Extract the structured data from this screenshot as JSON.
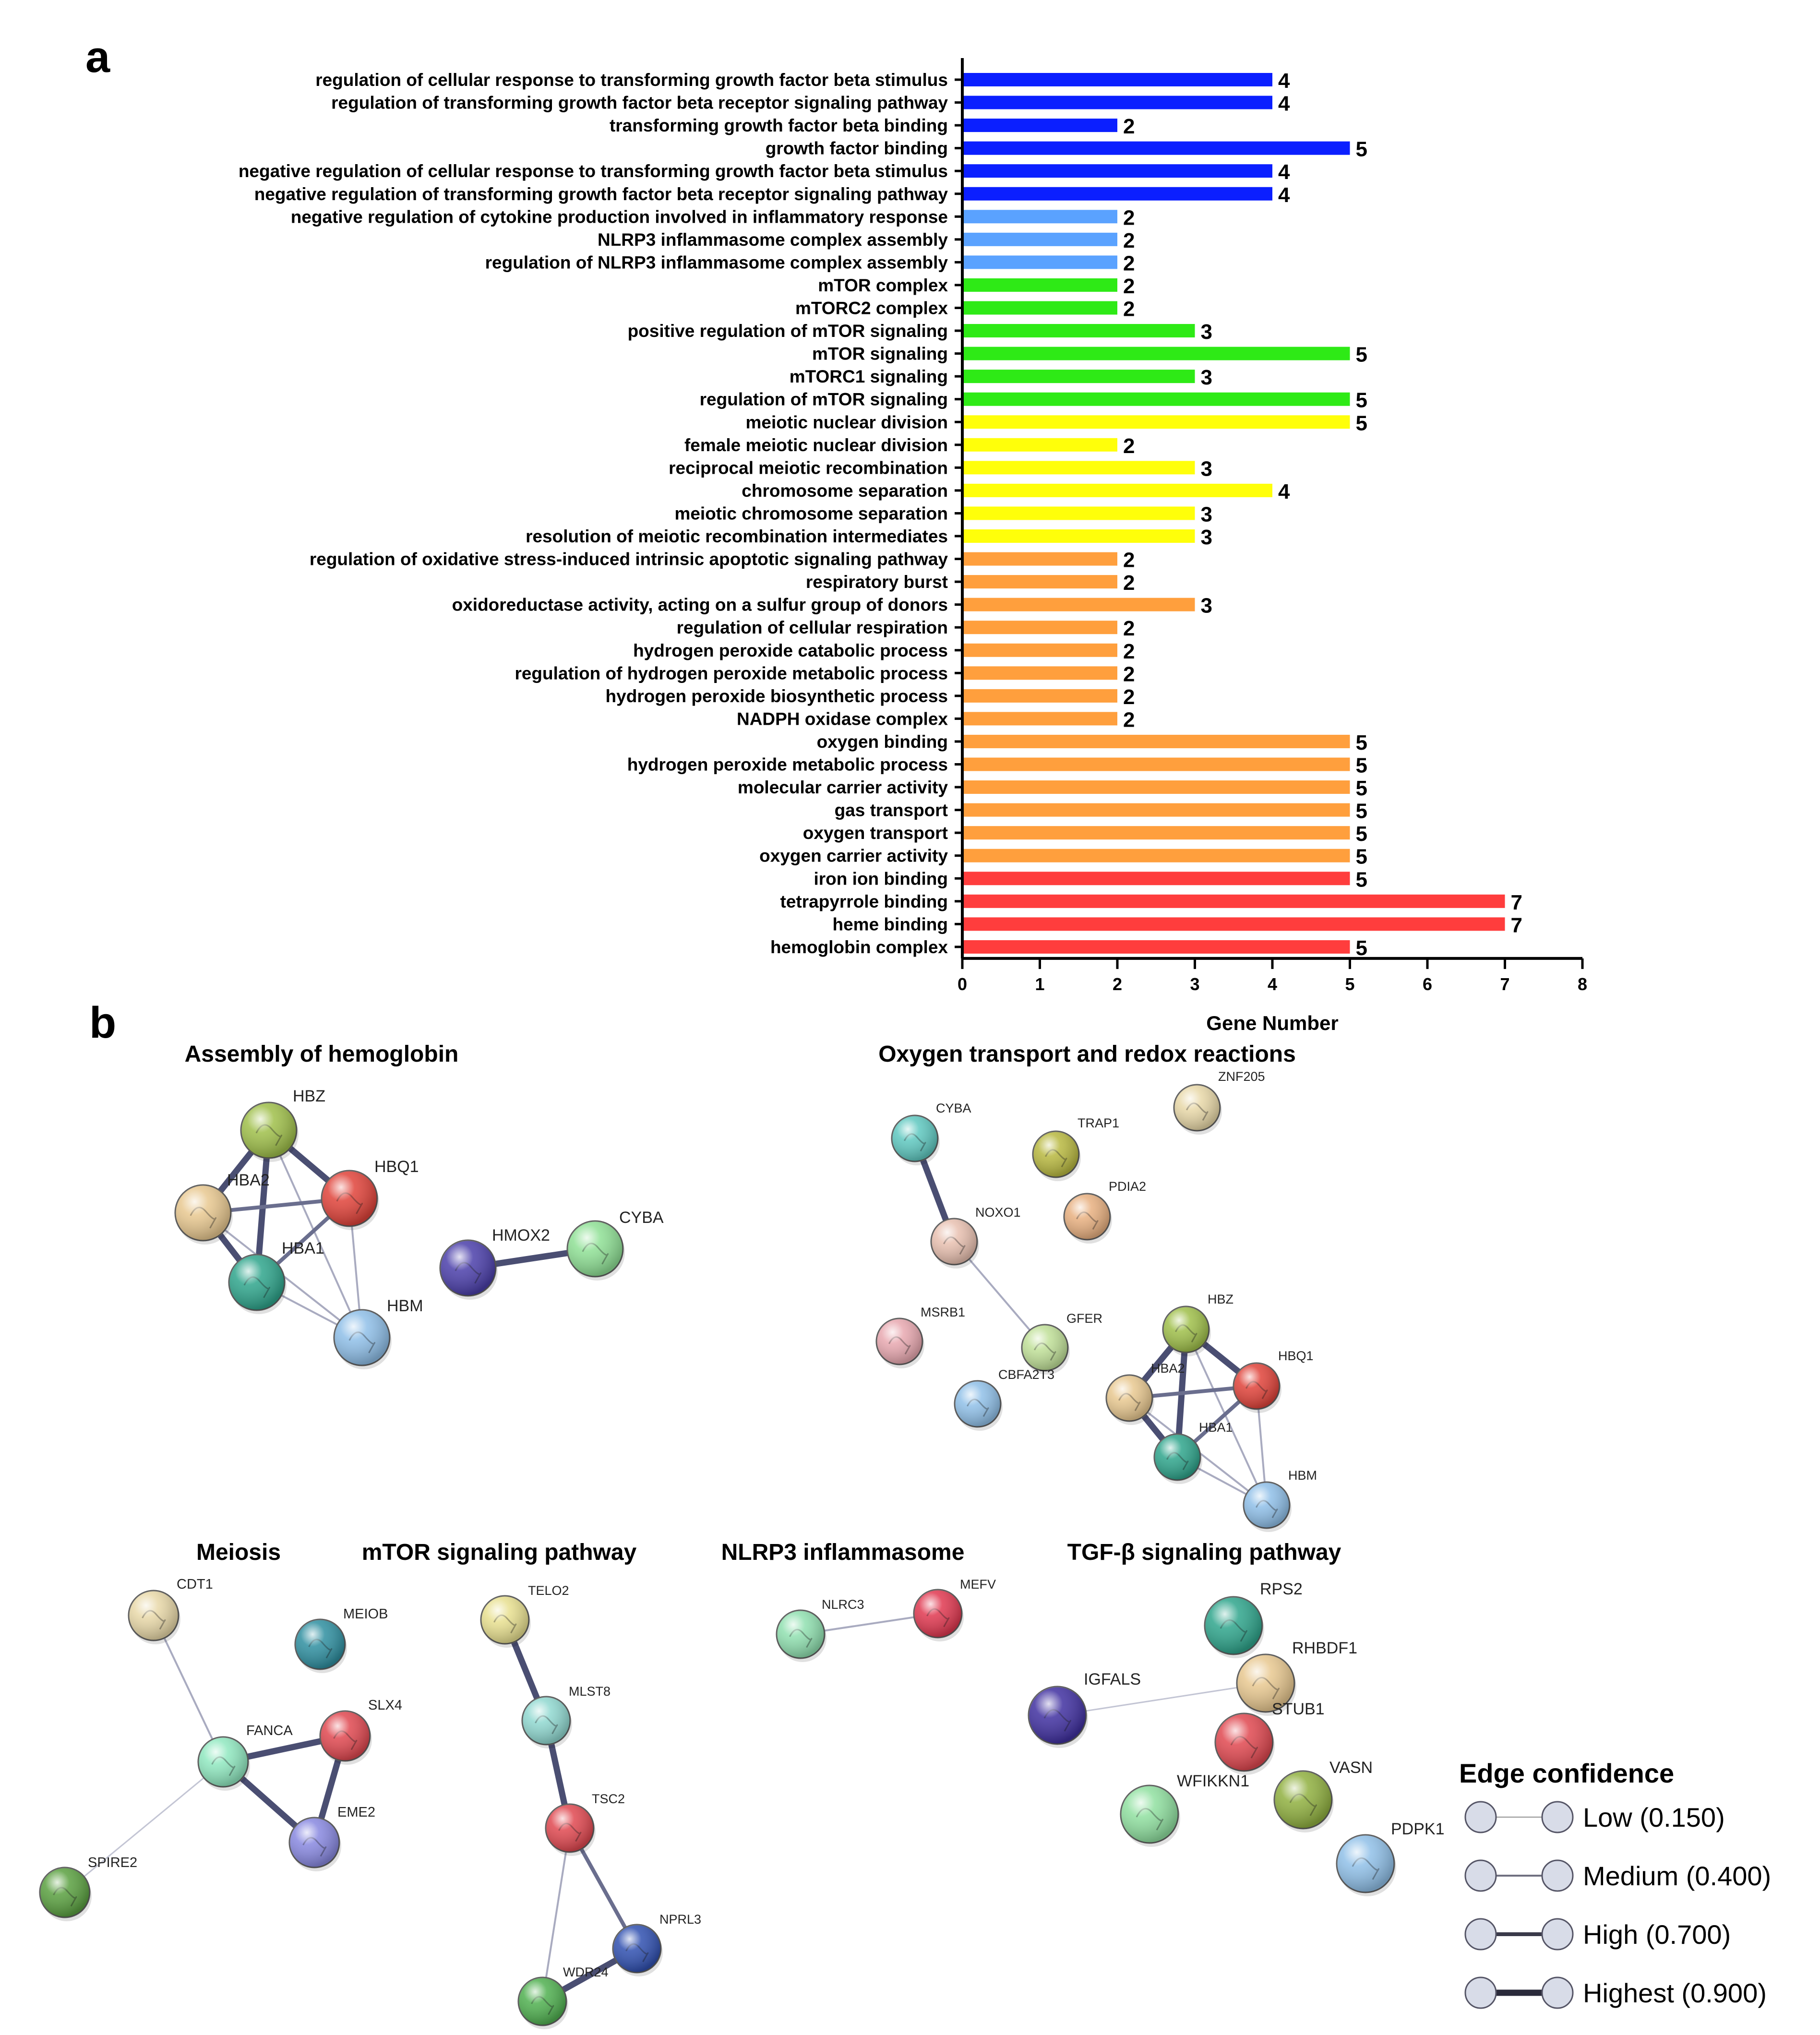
{
  "panels": [
    {
      "label": "a"
    },
    {
      "label": "b"
    }
  ],
  "chart_data": {
    "type": "bar",
    "orientation": "horizontal",
    "xlabel": "Gene Number",
    "xlim": [
      0,
      8
    ],
    "xticks": [
      0,
      1,
      2,
      3,
      4,
      5,
      6,
      7,
      8
    ],
    "group_colors": {
      "tgf": "#0b1fff",
      "nlrp3": "#5aa2ff",
      "mtor": "#2eea16",
      "meiosis": "#ffff0a",
      "redox": "#ff9f3d",
      "hemoglobin": "#ff3d3d"
    },
    "categories": [
      "regulation of cellular response to transforming growth factor beta stimulus",
      "regulation of transforming growth factor beta receptor signaling pathway",
      "transforming growth factor beta binding",
      "growth factor binding",
      "negative regulation of cellular response to transforming growth factor beta stimulus",
      "negative regulation of transforming growth factor beta receptor signaling pathway",
      "negative regulation of cytokine production involved in inflammatory response",
      "NLRP3 inflammasome complex assembly",
      "regulation of NLRP3 inflammasome complex assembly",
      "mTOR complex",
      "mTORC2 complex",
      "positive regulation of mTOR signaling",
      "mTOR signaling",
      "mTORC1 signaling",
      "regulation of mTOR signaling",
      "meiotic nuclear division",
      "female meiotic nuclear division",
      "reciprocal meiotic recombination",
      "chromosome separation",
      "meiotic chromosome separation",
      "resolution of meiotic recombination intermediates",
      "regulation of oxidative stress-induced intrinsic apoptotic signaling pathway",
      "respiratory burst",
      "oxidoreductase activity, acting on a sulfur group of donors",
      "regulation of cellular respiration",
      "hydrogen peroxide catabolic process",
      "regulation of hydrogen peroxide metabolic process",
      "hydrogen peroxide biosynthetic process",
      "NADPH oxidase complex",
      "oxygen binding",
      "hydrogen peroxide metabolic process",
      "molecular carrier activity",
      "gas transport",
      "oxygen transport",
      "oxygen carrier activity",
      "iron ion binding",
      "tetrapyrrole binding",
      "heme binding",
      "hemoglobin complex"
    ],
    "values": [
      4,
      4,
      2,
      5,
      4,
      4,
      2,
      2,
      2,
      2,
      2,
      3,
      5,
      3,
      5,
      5,
      2,
      3,
      4,
      3,
      3,
      2,
      2,
      3,
      2,
      2,
      2,
      2,
      2,
      5,
      5,
      5,
      5,
      5,
      5,
      5,
      7,
      7,
      5
    ],
    "groups": [
      "tgf",
      "tgf",
      "tgf",
      "tgf",
      "tgf",
      "tgf",
      "nlrp3",
      "nlrp3",
      "nlrp3",
      "mtor",
      "mtor",
      "mtor",
      "mtor",
      "mtor",
      "mtor",
      "meiosis",
      "meiosis",
      "meiosis",
      "meiosis",
      "meiosis",
      "meiosis",
      "redox",
      "redox",
      "redox",
      "redox",
      "redox",
      "redox",
      "redox",
      "redox",
      "redox",
      "redox",
      "redox",
      "redox",
      "redox",
      "redox",
      "hemoglobin",
      "hemoglobin",
      "hemoglobin",
      "hemoglobin"
    ]
  },
  "networks": [
    {
      "id": "hemo",
      "title": "Assembly of hemoglobin",
      "nodes": [
        {
          "id": "HBZ",
          "label": "HBZ",
          "color": "#9fbf4a"
        },
        {
          "id": "HBA2",
          "label": "HBA2",
          "color": "#e8c890"
        },
        {
          "id": "HBQ1",
          "label": "HBQ1",
          "color": "#e0433a"
        },
        {
          "id": "HBA1",
          "label": "HBA1",
          "color": "#2fa58c"
        },
        {
          "id": "HBM",
          "label": "HBM",
          "color": "#8fbfe8"
        },
        {
          "id": "HMOX2",
          "label": "HMOX2",
          "color": "#4b3faa"
        },
        {
          "id": "CYBA",
          "label": "CYBA",
          "color": "#8fe095"
        }
      ],
      "edges": [
        [
          "HBZ",
          "HBA2",
          0.9
        ],
        [
          "HBZ",
          "HBQ1",
          0.9
        ],
        [
          "HBZ",
          "HBA1",
          0.9
        ],
        [
          "HBZ",
          "HBM",
          0.4
        ],
        [
          "HBA2",
          "HBQ1",
          0.7
        ],
        [
          "HBA2",
          "HBA1",
          0.9
        ],
        [
          "HBA2",
          "HBM",
          0.4
        ],
        [
          "HBQ1",
          "HBA1",
          0.7
        ],
        [
          "HBQ1",
          "HBM",
          0.4
        ],
        [
          "HBA1",
          "HBM",
          0.4
        ],
        [
          "HMOX2",
          "CYBA",
          0.9
        ]
      ]
    },
    {
      "id": "oxy",
      "title": "Oxygen transport and redox reactions",
      "nodes": [
        {
          "id": "ZNF205",
          "label": "ZNF205",
          "color": "#e8d8a8"
        },
        {
          "id": "CYBA",
          "label": "CYBA",
          "color": "#5fc8c0"
        },
        {
          "id": "TRAP1",
          "label": "TRAP1",
          "color": "#b8b840"
        },
        {
          "id": "PDIA2",
          "label": "PDIA2",
          "color": "#e8b080"
        },
        {
          "id": "NOXO1",
          "label": "NOXO1",
          "color": "#e8c0b0"
        },
        {
          "id": "MSRB1",
          "label": "MSRB1",
          "color": "#e8a8b0"
        },
        {
          "id": "GFER",
          "label": "GFER",
          "color": "#c0e098"
        },
        {
          "id": "CBFA2T3",
          "label": "CBFA2T3",
          "color": "#90c0e8"
        },
        {
          "id": "HBZ",
          "label": "HBZ",
          "color": "#9fbf4a"
        },
        {
          "id": "HBA2",
          "label": "HBA2",
          "color": "#e8c890"
        },
        {
          "id": "HBQ1",
          "label": "HBQ1",
          "color": "#e0433a"
        },
        {
          "id": "HBA1",
          "label": "HBA1",
          "color": "#2fa58c"
        },
        {
          "id": "HBM",
          "label": "HBM",
          "color": "#8fbfe8"
        }
      ],
      "edges": [
        [
          "CYBA",
          "NOXO1",
          0.9
        ],
        [
          "NOXO1",
          "GFER",
          0.4
        ],
        [
          "HBZ",
          "HBA2",
          0.9
        ],
        [
          "HBZ",
          "HBQ1",
          0.9
        ],
        [
          "HBZ",
          "HBA1",
          0.9
        ],
        [
          "HBZ",
          "HBM",
          0.4
        ],
        [
          "HBA2",
          "HBQ1",
          0.7
        ],
        [
          "HBA2",
          "HBA1",
          0.9
        ],
        [
          "HBA2",
          "HBM",
          0.4
        ],
        [
          "HBQ1",
          "HBA1",
          0.7
        ],
        [
          "HBQ1",
          "HBM",
          0.4
        ],
        [
          "HBA1",
          "HBM",
          0.4
        ]
      ]
    },
    {
      "id": "meiosis",
      "title": "Meiosis",
      "nodes": [
        {
          "id": "CDT1",
          "label": "CDT1",
          "color": "#e8d8a8"
        },
        {
          "id": "MEIOB",
          "label": "MEIOB",
          "color": "#2f8fa0"
        },
        {
          "id": "SLX4",
          "label": "SLX4",
          "color": "#e04850"
        },
        {
          "id": "FANCA",
          "label": "FANCA",
          "color": "#90e8c0"
        },
        {
          "id": "EME2",
          "label": "EME2",
          "color": "#8888e0"
        },
        {
          "id": "SPIRE2",
          "label": "SPIRE2",
          "color": "#5aa040"
        }
      ],
      "edges": [
        [
          "CDT1",
          "FANCA",
          0.4
        ],
        [
          "FANCA",
          "SLX4",
          0.9
        ],
        [
          "FANCA",
          "EME2",
          0.9
        ],
        [
          "SLX4",
          "EME2",
          0.9
        ],
        [
          "FANCA",
          "SPIRE2",
          0.15
        ]
      ]
    },
    {
      "id": "mtor",
      "title": "mTOR signaling pathway",
      "nodes": [
        {
          "id": "TELO2",
          "label": "TELO2",
          "color": "#e8e090"
        },
        {
          "id": "MLST8",
          "label": "MLST8",
          "color": "#90d8d0"
        },
        {
          "id": "TSC2",
          "label": "TSC2",
          "color": "#e04850"
        },
        {
          "id": "NPRL3",
          "label": "NPRL3",
          "color": "#3050b0"
        },
        {
          "id": "WDR24",
          "label": "WDR24",
          "color": "#50b050"
        }
      ],
      "edges": [
        [
          "TELO2",
          "MLST8",
          0.9
        ],
        [
          "MLST8",
          "TSC2",
          0.9
        ],
        [
          "TSC2",
          "NPRL3",
          0.7
        ],
        [
          "TSC2",
          "WDR24",
          0.4
        ],
        [
          "NPRL3",
          "WDR24",
          0.9
        ]
      ]
    },
    {
      "id": "nlrp3",
      "title": "NLRP3 inflammasome",
      "nodes": [
        {
          "id": "NLRC3",
          "label": "NLRC3",
          "color": "#90e0b0"
        },
        {
          "id": "MEFV",
          "label": "MEFV",
          "color": "#e03850"
        }
      ],
      "edges": [
        [
          "NLRC3",
          "MEFV",
          0.4
        ]
      ]
    },
    {
      "id": "tgf",
      "title": "TGF-β signaling pathway",
      "nodes": [
        {
          "id": "RPS2",
          "label": "RPS2",
          "color": "#2fa58c"
        },
        {
          "id": "RHBDF1",
          "label": "RHBDF1",
          "color": "#e8c890"
        },
        {
          "id": "IGFALS",
          "label": "IGFALS",
          "color": "#4030a0"
        },
        {
          "id": "STUB1",
          "label": "STUB1",
          "color": "#e04850"
        },
        {
          "id": "VASN",
          "label": "VASN",
          "color": "#90b040"
        },
        {
          "id": "WFIKKN1",
          "label": "WFIKKN1",
          "color": "#90e0a0"
        },
        {
          "id": "PDPK1",
          "label": "PDPK1",
          "color": "#90c0e8"
        }
      ],
      "edges": [
        [
          "IGFALS",
          "RHBDF1",
          0.15
        ]
      ]
    }
  ],
  "legend": {
    "title": "Edge confidence",
    "items": [
      {
        "label": "Low (0.150)",
        "confidence": 0.15
      },
      {
        "label": "Medium (0.400)",
        "confidence": 0.4
      },
      {
        "label": "High (0.700)",
        "confidence": 0.7
      },
      {
        "label": "Highest (0.900)",
        "confidence": 0.9
      }
    ]
  }
}
